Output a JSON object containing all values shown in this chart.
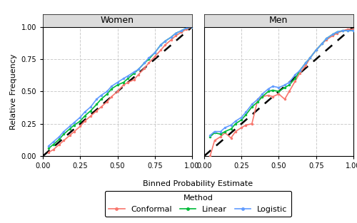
{
  "women": {
    "conformal": {
      "x": [
        0.04,
        0.07,
        0.11,
        0.14,
        0.18,
        0.21,
        0.25,
        0.28,
        0.32,
        0.36,
        0.39,
        0.43,
        0.46,
        0.5,
        0.54,
        0.57,
        0.61,
        0.64,
        0.68,
        0.71,
        0.75,
        0.79,
        0.82,
        0.86,
        0.89,
        0.93,
        0.96,
        1.0
      ],
      "y": [
        0.03,
        0.05,
        0.09,
        0.12,
        0.16,
        0.19,
        0.23,
        0.27,
        0.31,
        0.35,
        0.38,
        0.42,
        0.46,
        0.5,
        0.55,
        0.57,
        0.59,
        0.63,
        0.68,
        0.72,
        0.77,
        0.82,
        0.86,
        0.9,
        0.93,
        0.96,
        0.98,
        1.0
      ]
    },
    "linear": {
      "x": [
        0.04,
        0.07,
        0.11,
        0.14,
        0.18,
        0.21,
        0.25,
        0.28,
        0.32,
        0.36,
        0.39,
        0.43,
        0.46,
        0.5,
        0.54,
        0.57,
        0.61,
        0.64,
        0.68,
        0.71,
        0.75,
        0.79,
        0.82,
        0.86,
        0.89,
        0.93,
        0.96,
        1.0
      ],
      "y": [
        0.06,
        0.09,
        0.13,
        0.17,
        0.21,
        0.24,
        0.27,
        0.31,
        0.35,
        0.4,
        0.44,
        0.48,
        0.52,
        0.55,
        0.57,
        0.6,
        0.64,
        0.67,
        0.72,
        0.75,
        0.8,
        0.86,
        0.89,
        0.92,
        0.95,
        0.97,
        0.99,
        1.0
      ]
    },
    "logistic": {
      "x": [
        0.04,
        0.07,
        0.11,
        0.14,
        0.18,
        0.21,
        0.25,
        0.28,
        0.32,
        0.36,
        0.39,
        0.43,
        0.46,
        0.5,
        0.54,
        0.57,
        0.61,
        0.64,
        0.68,
        0.71,
        0.75,
        0.79,
        0.82,
        0.86,
        0.89,
        0.93,
        0.96,
        1.0
      ],
      "y": [
        0.08,
        0.11,
        0.15,
        0.19,
        0.23,
        0.26,
        0.3,
        0.34,
        0.38,
        0.44,
        0.47,
        0.5,
        0.54,
        0.57,
        0.6,
        0.62,
        0.65,
        0.67,
        0.72,
        0.76,
        0.8,
        0.86,
        0.89,
        0.92,
        0.95,
        0.97,
        0.99,
        1.0
      ]
    }
  },
  "men": {
    "conformal": {
      "x": [
        0.04,
        0.07,
        0.11,
        0.14,
        0.18,
        0.21,
        0.25,
        0.28,
        0.32,
        0.36,
        0.39,
        0.43,
        0.46,
        0.5,
        0.54,
        0.57,
        0.61,
        0.64,
        0.68,
        0.71,
        0.75,
        0.79,
        0.82,
        0.86,
        0.89,
        0.93,
        0.96,
        1.0
      ],
      "y": [
        0.0,
        0.12,
        0.15,
        0.18,
        0.14,
        0.19,
        0.22,
        0.24,
        0.25,
        0.44,
        0.46,
        0.47,
        0.46,
        0.48,
        0.44,
        0.5,
        0.58,
        0.64,
        0.7,
        0.76,
        0.82,
        0.87,
        0.9,
        0.93,
        0.95,
        0.97,
        0.98,
        0.98
      ]
    },
    "linear": {
      "x": [
        0.04,
        0.07,
        0.11,
        0.14,
        0.18,
        0.21,
        0.25,
        0.28,
        0.32,
        0.36,
        0.39,
        0.43,
        0.46,
        0.5,
        0.54,
        0.57,
        0.61,
        0.64,
        0.68,
        0.71,
        0.75,
        0.79,
        0.82,
        0.86,
        0.89,
        0.93,
        0.96,
        1.0
      ],
      "y": [
        0.15,
        0.18,
        0.17,
        0.19,
        0.21,
        0.25,
        0.28,
        0.32,
        0.38,
        0.42,
        0.46,
        0.5,
        0.51,
        0.5,
        0.53,
        0.55,
        0.6,
        0.66,
        0.72,
        0.76,
        0.82,
        0.87,
        0.91,
        0.94,
        0.96,
        0.97,
        0.97,
        0.97
      ]
    },
    "logistic": {
      "x": [
        0.04,
        0.07,
        0.11,
        0.14,
        0.18,
        0.21,
        0.25,
        0.28,
        0.32,
        0.36,
        0.39,
        0.43,
        0.46,
        0.5,
        0.54,
        0.57,
        0.61,
        0.64,
        0.68,
        0.71,
        0.75,
        0.79,
        0.82,
        0.86,
        0.89,
        0.93,
        0.96,
        1.0
      ],
      "y": [
        0.16,
        0.19,
        0.19,
        0.22,
        0.24,
        0.27,
        0.3,
        0.34,
        0.4,
        0.44,
        0.48,
        0.52,
        0.54,
        0.53,
        0.55,
        0.57,
        0.63,
        0.66,
        0.72,
        0.76,
        0.82,
        0.87,
        0.91,
        0.94,
        0.96,
        0.97,
        0.97,
        0.97
      ]
    }
  },
  "colors": {
    "conformal": "#F8766D",
    "linear": "#00BA38",
    "logistic": "#619CFF"
  },
  "marker_size": 2.5,
  "linewidth": 1.2,
  "xlabel": "Binned Probability Estimate",
  "ylabel": "Relative Frequency",
  "legend_title": "Method",
  "panel_titles": [
    "Women",
    "Men"
  ],
  "xlim": [
    0.0,
    1.0
  ],
  "ylim": [
    0.0,
    1.0
  ],
  "xticks": [
    0.0,
    0.25,
    0.5,
    0.75,
    1.0
  ],
  "yticks": [
    0.0,
    0.25,
    0.5,
    0.75,
    1.0
  ],
  "strip_bg": "#DCDCDC",
  "panel_bg": "#FFFFFF",
  "fig_bg": "#FFFFFF",
  "grid_color": "#CCCCCC",
  "grid_lw": 0.7
}
